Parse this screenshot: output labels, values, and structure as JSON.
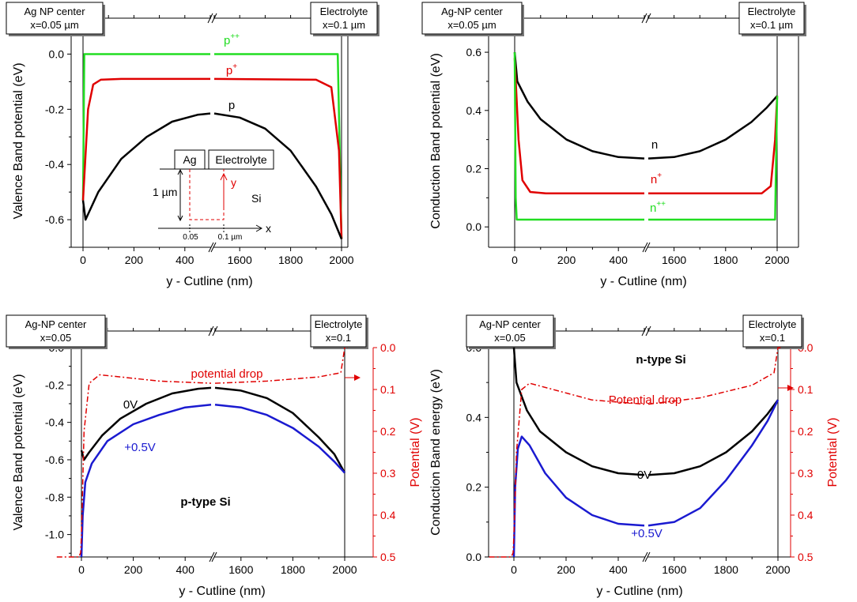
{
  "chart_data": [
    {
      "type": "line",
      "panel": "top-left",
      "ylabel": "Valence Band potential  (eV)",
      "xlabel": "y - Cutline (nm)",
      "x_ticks_left": [
        "0",
        "200",
        "400"
      ],
      "x_ticks_right": [
        "1600",
        "1800",
        "2000"
      ],
      "y_ticks": [
        "0.0",
        "-0.2",
        "-0.4",
        "-0.6"
      ],
      "ylim": [
        -0.7,
        0.07
      ],
      "box_left": [
        "Ag NP center",
        "x=0.05 µm"
      ],
      "box_right": [
        "Electrolyte",
        "x=0.1 µm"
      ],
      "series": [
        {
          "name": "p++",
          "label": "p",
          "sup": "++",
          "color": "#22dd22",
          "left": [
            [
              0,
              -0.53
            ],
            [
              5,
              0.0
            ],
            [
              10,
              0.0
            ],
            [
              500,
              0.0
            ]
          ],
          "right": [
            [
              1500,
              0.0
            ],
            [
              1985,
              0.0
            ],
            [
              2000,
              -0.67
            ]
          ]
        },
        {
          "name": "p+",
          "label": "p",
          "sup": "+",
          "color": "#e00000",
          "left": [
            [
              0,
              -0.53
            ],
            [
              20,
              -0.2
            ],
            [
              40,
              -0.11
            ],
            [
              70,
              -0.093
            ],
            [
              150,
              -0.09
            ],
            [
              500,
              -0.09
            ]
          ],
          "right": [
            [
              1500,
              -0.09
            ],
            [
              1900,
              -0.093
            ],
            [
              1960,
              -0.12
            ],
            [
              1990,
              -0.35
            ],
            [
              2000,
              -0.67
            ]
          ]
        },
        {
          "name": "p",
          "label": "p",
          "sup": "",
          "color": "#000000",
          "left": [
            [
              0,
              -0.53
            ],
            [
              10,
              -0.6
            ],
            [
              20,
              -0.58
            ],
            [
              60,
              -0.5
            ],
            [
              150,
              -0.38
            ],
            [
              250,
              -0.3
            ],
            [
              350,
              -0.245
            ],
            [
              450,
              -0.22
            ],
            [
              500,
              -0.215
            ]
          ],
          "right": [
            [
              1500,
              -0.215
            ],
            [
              1600,
              -0.23
            ],
            [
              1700,
              -0.27
            ],
            [
              1800,
              -0.35
            ],
            [
              1900,
              -0.48
            ],
            [
              1960,
              -0.58
            ],
            [
              2000,
              -0.67
            ]
          ]
        }
      ],
      "inset": {
        "ag": "Ag",
        "electrolyte": "Electrolyte",
        "si": "Si",
        "depth": "1 µm",
        "y": "y",
        "x": "x",
        "x1": "0.05",
        "x2": "0.1 µm"
      }
    },
    {
      "type": "line",
      "panel": "top-right",
      "ylabel": "Conduction Band potential  (eV)",
      "xlabel": "y - Cutline (nm)",
      "x_ticks_left": [
        "0",
        "200",
        "400"
      ],
      "x_ticks_right": [
        "1600",
        "1800",
        "2000"
      ],
      "y_ticks": [
        "0.6",
        "0.4",
        "0.2",
        "0.0"
      ],
      "ylim": [
        -0.07,
        0.66
      ],
      "box_left": [
        "Ag-NP center",
        "x=0.05 µm"
      ],
      "box_right": [
        "Electrolyte",
        "x=0.1 µm"
      ],
      "series": [
        {
          "name": "n",
          "label": "n",
          "sup": "",
          "color": "#000000",
          "left": [
            [
              0,
              0.6
            ],
            [
              10,
              0.5
            ],
            [
              50,
              0.43
            ],
            [
              100,
              0.37
            ],
            [
              200,
              0.3
            ],
            [
              300,
              0.26
            ],
            [
              400,
              0.24
            ],
            [
              500,
              0.235
            ]
          ],
          "right": [
            [
              1500,
              0.235
            ],
            [
              1600,
              0.24
            ],
            [
              1700,
              0.26
            ],
            [
              1800,
              0.3
            ],
            [
              1900,
              0.36
            ],
            [
              1960,
              0.41
            ],
            [
              2000,
              0.45
            ]
          ]
        },
        {
          "name": "n+",
          "label": "n",
          "sup": "+",
          "color": "#e00000",
          "left": [
            [
              0,
              0.58
            ],
            [
              15,
              0.3
            ],
            [
              30,
              0.16
            ],
            [
              60,
              0.12
            ],
            [
              120,
              0.115
            ],
            [
              500,
              0.115
            ]
          ],
          "right": [
            [
              1500,
              0.115
            ],
            [
              1940,
              0.115
            ],
            [
              1975,
              0.14
            ],
            [
              1992,
              0.3
            ],
            [
              2000,
              0.45
            ]
          ]
        },
        {
          "name": "n++",
          "label": "n",
          "sup": "++",
          "color": "#22dd22",
          "left": [
            [
              0,
              0.6
            ],
            [
              4,
              0.1
            ],
            [
              8,
              0.025
            ],
            [
              500,
              0.025
            ]
          ],
          "right": [
            [
              1500,
              0.025
            ],
            [
              1992,
              0.025
            ],
            [
              2000,
              0.45
            ]
          ]
        }
      ]
    },
    {
      "type": "line",
      "panel": "bottom-left",
      "ylabel": "Valence Band potential  (eV)",
      "ylabel_right": "Potential (V)",
      "xlabel": "y - Cutline (nm)",
      "x_ticks_left": [
        "0",
        "200",
        "400"
      ],
      "x_ticks_right": [
        "1600",
        "1800",
        "2000"
      ],
      "y_ticks": [
        "0.0",
        "-0.2",
        "-0.4",
        "-0.6",
        "-0.8",
        "-1.0"
      ],
      "y_ticks_right": [
        "0.0",
        "0.1",
        "0.2",
        "0.3",
        "0.4",
        "0.5"
      ],
      "ylim": [
        -1.12,
        0.0
      ],
      "ylim_right": [
        0.5,
        0.0
      ],
      "box_left": [
        "Ag-NP center",
        "x=0.05"
      ],
      "box_right": [
        "Electrolyte",
        "x=0.1"
      ],
      "annotation": "p-type Si",
      "series": [
        {
          "name": "0V",
          "label": "0V",
          "color": "#000000",
          "axis": "left",
          "left": [
            [
              0,
              -0.55
            ],
            [
              10,
              -0.6
            ],
            [
              30,
              -0.56
            ],
            [
              80,
              -0.47
            ],
            [
              150,
              -0.38
            ],
            [
              250,
              -0.3
            ],
            [
              350,
              -0.245
            ],
            [
              450,
              -0.22
            ],
            [
              500,
              -0.215
            ]
          ],
          "right": [
            [
              1500,
              -0.215
            ],
            [
              1600,
              -0.23
            ],
            [
              1700,
              -0.27
            ],
            [
              1800,
              -0.35
            ],
            [
              1900,
              -0.48
            ],
            [
              1960,
              -0.57
            ],
            [
              2000,
              -0.67
            ]
          ]
        },
        {
          "name": "+0.5V",
          "label": "+0.5V",
          "color": "#1a1ad0",
          "axis": "left",
          "left": [
            [
              0,
              -1.12
            ],
            [
              5,
              -0.9
            ],
            [
              15,
              -0.72
            ],
            [
              40,
              -0.62
            ],
            [
              100,
              -0.5
            ],
            [
              200,
              -0.41
            ],
            [
              300,
              -0.36
            ],
            [
              400,
              -0.32
            ],
            [
              500,
              -0.305
            ]
          ],
          "right": [
            [
              1500,
              -0.305
            ],
            [
              1600,
              -0.32
            ],
            [
              1700,
              -0.36
            ],
            [
              1800,
              -0.43
            ],
            [
              1900,
              -0.53
            ],
            [
              1960,
              -0.61
            ],
            [
              2000,
              -0.67
            ]
          ]
        },
        {
          "name": "potential drop",
          "label": "potential drop",
          "color": "#e00000",
          "axis": "right",
          "dash": true,
          "pre": [
            [
              -95,
              0.5
            ],
            [
              -10,
              0.5
            ],
            [
              -3,
              0.49
            ]
          ],
          "left": [
            [
              0,
              0.45
            ],
            [
              10,
              0.2
            ],
            [
              30,
              0.085
            ],
            [
              70,
              0.065
            ],
            [
              150,
              0.07
            ],
            [
              300,
              0.08
            ],
            [
              500,
              0.085
            ]
          ],
          "right": [
            [
              1500,
              0.085
            ],
            [
              1700,
              0.08
            ],
            [
              1900,
              0.07
            ],
            [
              1985,
              0.06
            ],
            [
              1995,
              0.02
            ],
            [
              2000,
              0.0
            ],
            [
              2010,
              0.0
            ]
          ]
        }
      ]
    },
    {
      "type": "line",
      "panel": "bottom-right",
      "ylabel": "Conduction Band energy  (eV)",
      "ylabel_right": "Potential (V)",
      "xlabel": "y - Cutline (nm)",
      "x_ticks_left": [
        "0",
        "200",
        "400"
      ],
      "x_ticks_right": [
        "1600",
        "1800",
        "2000"
      ],
      "y_ticks": [
        "0.6",
        "0.4",
        "0.2",
        "0.0"
      ],
      "y_ticks_right": [
        "0.0",
        "0.1",
        "0.2",
        "0.3",
        "0.4",
        "0.5"
      ],
      "ylim": [
        0.0,
        0.6
      ],
      "ylim_right": [
        0.5,
        0.0
      ],
      "box_left": [
        "Ag-NP center",
        "x=0.05"
      ],
      "box_right": [
        "Electrolyte",
        "x=0.1"
      ],
      "annotation": "n-type Si",
      "series": [
        {
          "name": "0V",
          "label": "0V",
          "color": "#000000",
          "axis": "left",
          "left": [
            [
              0,
              0.6
            ],
            [
              10,
              0.5
            ],
            [
              50,
              0.42
            ],
            [
              100,
              0.36
            ],
            [
              200,
              0.3
            ],
            [
              300,
              0.26
            ],
            [
              400,
              0.24
            ],
            [
              500,
              0.235
            ]
          ],
          "right": [
            [
              1500,
              0.235
            ],
            [
              1600,
              0.24
            ],
            [
              1700,
              0.26
            ],
            [
              1800,
              0.3
            ],
            [
              1900,
              0.36
            ],
            [
              1960,
              0.41
            ],
            [
              2000,
              0.45
            ]
          ]
        },
        {
          "name": "+0.5V",
          "label": "+0.5V",
          "color": "#1a1ad0",
          "axis": "left",
          "left": [
            [
              0,
              0.0
            ],
            [
              5,
              0.2
            ],
            [
              15,
              0.31
            ],
            [
              30,
              0.345
            ],
            [
              60,
              0.32
            ],
            [
              120,
              0.24
            ],
            [
              200,
              0.17
            ],
            [
              300,
              0.12
            ],
            [
              400,
              0.095
            ],
            [
              500,
              0.09
            ]
          ],
          "right": [
            [
              1500,
              0.09
            ],
            [
              1600,
              0.1
            ],
            [
              1700,
              0.14
            ],
            [
              1800,
              0.22
            ],
            [
              1900,
              0.32
            ],
            [
              1960,
              0.39
            ],
            [
              2000,
              0.45
            ]
          ]
        },
        {
          "name": "Potential drop",
          "label": "Potential drop",
          "color": "#e00000",
          "axis": "right",
          "dash": true,
          "pre": [
            [
              -95,
              0.5
            ],
            [
              -10,
              0.5
            ],
            [
              -3,
              0.49
            ]
          ],
          "left": [
            [
              0,
              0.45
            ],
            [
              10,
              0.25
            ],
            [
              30,
              0.1
            ],
            [
              60,
              0.085
            ],
            [
              150,
              0.1
            ],
            [
              300,
              0.125
            ],
            [
              500,
              0.135
            ]
          ],
          "right": [
            [
              1500,
              0.135
            ],
            [
              1700,
              0.12
            ],
            [
              1900,
              0.09
            ],
            [
              1985,
              0.06
            ],
            [
              1995,
              0.02
            ],
            [
              2000,
              0.0
            ],
            [
              2010,
              0.0
            ]
          ]
        }
      ]
    }
  ]
}
